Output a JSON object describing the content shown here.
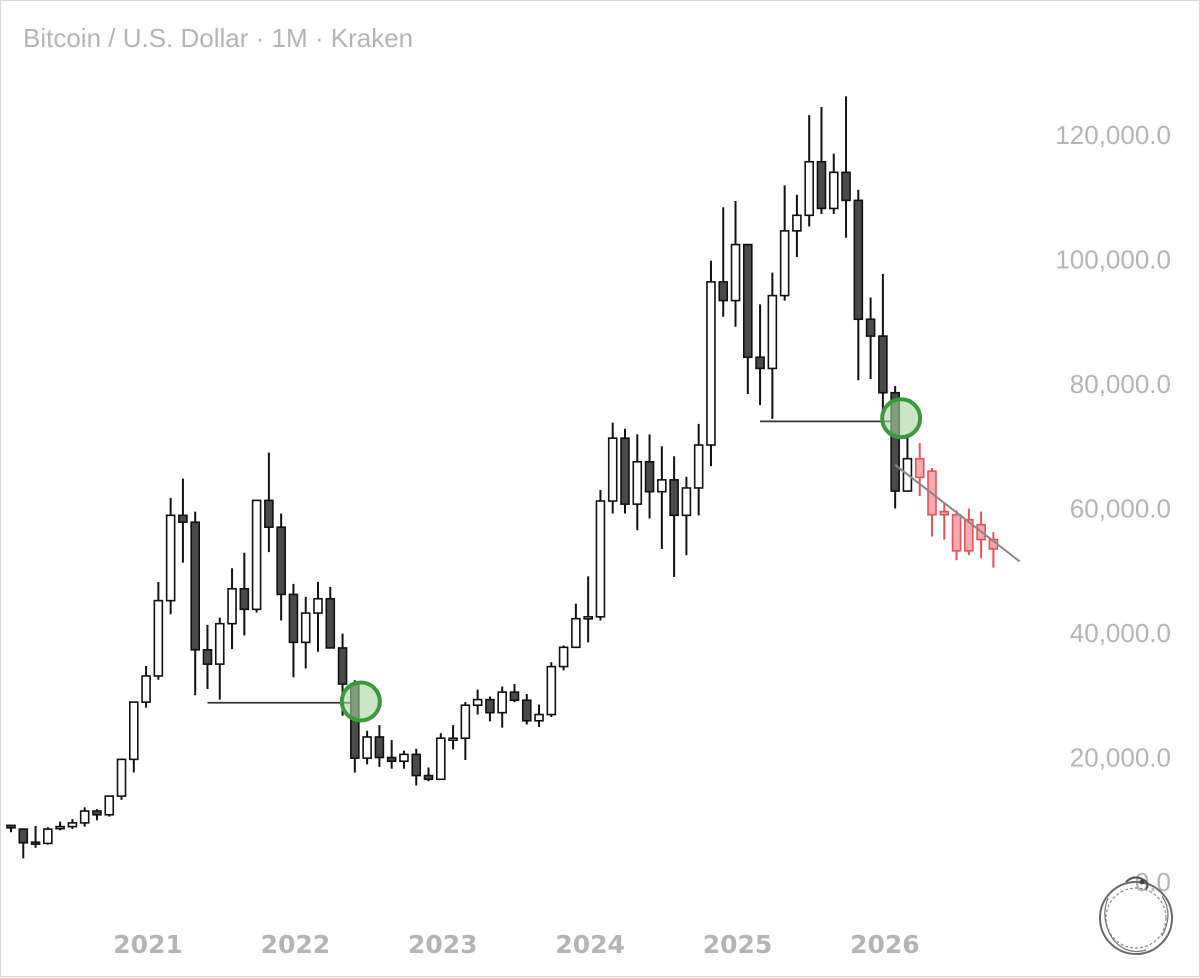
{
  "title": "Bitcoin / U.S. Dollar · 1M · Kraken",
  "chart_data": {
    "type": "candlestick",
    "interval": "1M",
    "exchange": "Kraken",
    "ylim": [
      0,
      127000
    ],
    "y_ticks": [
      {
        "value": 0,
        "label": "0.0"
      },
      {
        "value": 20000,
        "label": "20,000.0"
      },
      {
        "value": 40000,
        "label": "40,000.0"
      },
      {
        "value": 60000,
        "label": "60,000.0"
      },
      {
        "value": 80000,
        "label": "80,000.0"
      },
      {
        "value": 100000,
        "label": "100,000.0"
      },
      {
        "value": 120000,
        "label": "120,000.0"
      }
    ],
    "x_ticks": [
      "2021",
      "2022",
      "2023",
      "2024",
      "2025",
      "2026"
    ],
    "grid": false,
    "colors": {
      "up_body": "#ffffff",
      "down_body": "#4a4a4a",
      "outline": "#111111",
      "projection": "#e8505b",
      "projection_fill": "#f5aab0",
      "highlight": "#3a9a3a",
      "highlight_fill": "#a8d6a2",
      "trendline": "#888888",
      "text": "#b5b5b5"
    },
    "candles": [
      [
        9100,
        9150,
        8700,
        8000
      ],
      [
        8500,
        8600,
        6300,
        3800
      ],
      [
        6400,
        9000,
        6200,
        5500
      ],
      [
        6200,
        8800,
        8500,
        6000
      ],
      [
        8600,
        9700,
        8900,
        8300
      ],
      [
        8900,
        10100,
        9500,
        8500
      ],
      [
        9500,
        12000,
        11400,
        8900
      ],
      [
        11400,
        11700,
        10800,
        9900
      ],
      [
        10800,
        13800,
        13800,
        10500
      ],
      [
        13800,
        19800,
        19700,
        13200
      ],
      [
        19700,
        29000,
        28900,
        17600
      ],
      [
        28900,
        34700,
        33100,
        28000
      ],
      [
        33100,
        48200,
        45200,
        32500
      ],
      [
        45200,
        61700,
        58900,
        43000
      ],
      [
        58900,
        64800,
        57800,
        51300
      ],
      [
        57800,
        59500,
        37300,
        30000
      ],
      [
        37300,
        41300,
        35000,
        31000
      ],
      [
        35000,
        42500,
        41500,
        29300
      ],
      [
        41500,
        50400,
        47100,
        37400
      ],
      [
        47100,
        52900,
        43800,
        39600
      ],
      [
        43800,
        61400,
        61300,
        43300
      ],
      [
        61300,
        69000,
        57000,
        53000
      ],
      [
        57000,
        59200,
        46200,
        42000
      ],
      [
        46200,
        47900,
        38500,
        32900
      ],
      [
        38500,
        45800,
        43200,
        34300
      ],
      [
        43200,
        48200,
        45500,
        37000
      ],
      [
        45500,
        47400,
        37600,
        37600
      ],
      [
        37600,
        39900,
        31800,
        26700
      ],
      [
        31800,
        32400,
        19900,
        17600
      ],
      [
        19900,
        24300,
        23300,
        18900
      ],
      [
        23300,
        25200,
        20000,
        18500
      ],
      [
        20000,
        22800,
        19400,
        18200
      ],
      [
        19400,
        21100,
        20500,
        18200
      ],
      [
        20500,
        21400,
        17100,
        15500
      ],
      [
        17100,
        18400,
        16500,
        16200
      ],
      [
        16500,
        23900,
        23100,
        16500
      ],
      [
        23100,
        25200,
        23100,
        21300
      ],
      [
        23100,
        28900,
        28400,
        19600
      ],
      [
        28400,
        30900,
        29300,
        26900
      ],
      [
        29300,
        29800,
        27200,
        25800
      ],
      [
        27200,
        31400,
        30500,
        24800
      ],
      [
        30500,
        31800,
        29200,
        28900
      ],
      [
        29200,
        30200,
        25900,
        25300
      ],
      [
        25900,
        28500,
        26900,
        24900
      ],
      [
        26900,
        35300,
        34600,
        26500
      ],
      [
        34600,
        38000,
        37700,
        34000
      ],
      [
        37700,
        44700,
        42300,
        37700
      ],
      [
        42300,
        49100,
        42600,
        38500
      ],
      [
        42600,
        63000,
        61200,
        42000
      ],
      [
        61200,
        73800,
        71300,
        59200
      ],
      [
        71300,
        72800,
        60700,
        59200
      ],
      [
        60700,
        71900,
        67500,
        56500
      ],
      [
        67500,
        71900,
        62700,
        58400
      ],
      [
        62700,
        70000,
        64600,
        53500
      ],
      [
        64600,
        68400,
        58900,
        49000
      ],
      [
        58900,
        65100,
        63300,
        52500
      ],
      [
        63300,
        73600,
        70200,
        58900
      ],
      [
        70200,
        99800,
        96400,
        66800
      ],
      [
        96400,
        108400,
        93400,
        90800
      ],
      [
        93400,
        109400,
        102400,
        89200
      ],
      [
        102400,
        102500,
        84300,
        78400
      ],
      [
        84300,
        92800,
        82500,
        76600
      ],
      [
        82500,
        97900,
        94200,
        74400
      ],
      [
        94200,
        111900,
        104600,
        93400
      ],
      [
        104600,
        110400,
        107100,
        100400
      ],
      [
        107100,
        123200,
        115700,
        105300
      ],
      [
        115700,
        124500,
        108200,
        107300
      ],
      [
        108200,
        117000,
        114000,
        107300
      ],
      [
        114000,
        126200,
        109500,
        103500
      ],
      [
        109500,
        111200,
        90400,
        80600
      ],
      [
        90400,
        93900,
        87700,
        80800
      ],
      [
        87700,
        97700,
        78600,
        74200
      ],
      [
        78600,
        79700,
        62800,
        60000
      ],
      [
        62800,
        72000,
        68000,
        64000
      ]
    ],
    "projection_candles": [
      [
        68000,
        70500,
        65000,
        62000
      ],
      [
        66000,
        66500,
        59000,
        55500
      ],
      [
        59500,
        61000,
        59000,
        55000
      ],
      [
        59000,
        59700,
        53200,
        51700
      ],
      [
        53200,
        60000,
        58200,
        52500
      ],
      [
        57400,
        59500,
        55000,
        52000
      ],
      [
        55000,
        56200,
        53500,
        50500
      ]
    ],
    "support_lines": [
      {
        "from_index": 16,
        "to_index": 28,
        "price": 28800
      },
      {
        "from_index": 61,
        "to_index": 72,
        "price": 74000
      }
    ],
    "highlight_circles": [
      {
        "index": 28,
        "price": 29000
      },
      {
        "index": 72,
        "price": 74500
      }
    ],
    "trendline": {
      "from_index": 72,
      "from_price": 67000,
      "to_index": 81,
      "to_price": 51500
    }
  }
}
